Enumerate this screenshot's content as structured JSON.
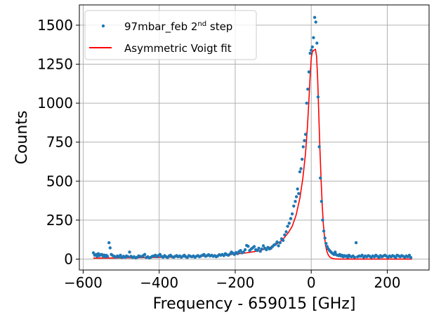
{
  "chart_data": {
    "type": "scatter",
    "title": "",
    "xlabel": "Frequency - 659015 [GHz]",
    "ylabel": "Counts",
    "xlim": [
      -610,
      310
    ],
    "ylim": [
      -70,
      1630
    ],
    "xticks": [
      -600,
      -400,
      -200,
      0,
      200
    ],
    "xtick_labels": [
      "−600",
      "−400",
      "−200",
      "0",
      "200"
    ],
    "yticks": [
      0,
      250,
      500,
      750,
      1000,
      1250,
      1500
    ],
    "ytick_labels": [
      "0",
      "250",
      "500",
      "750",
      "1000",
      "1250",
      "1500"
    ],
    "grid": true,
    "legend_position": "top-left",
    "colors": {
      "data": "#1f77b4",
      "fit": "#ff0000",
      "grid": "#b0b0b0"
    },
    "series": [
      {
        "name": "97mbar_feb 2nd step",
        "legend": {
          "main": "97mbar_feb 2",
          "superscript": "nd",
          "suffix": " step"
        },
        "kind": "scatter",
        "points": [
          [
            -573,
            40
          ],
          [
            -570,
            25
          ],
          [
            -566,
            30
          ],
          [
            -563,
            18
          ],
          [
            -560,
            35
          ],
          [
            -557,
            22
          ],
          [
            -554,
            28
          ],
          [
            -551,
            30
          ],
          [
            -548,
            20
          ],
          [
            -545,
            26
          ],
          [
            -542,
            15
          ],
          [
            -539,
            24
          ],
          [
            -536,
            18
          ],
          [
            -532,
            105
          ],
          [
            -529,
            72
          ],
          [
            -526,
            30
          ],
          [
            -522,
            22
          ],
          [
            -518,
            18
          ],
          [
            -514,
            12
          ],
          [
            -510,
            20
          ],
          [
            -506,
            15
          ],
          [
            -502,
            25
          ],
          [
            -498,
            10
          ],
          [
            -494,
            18
          ],
          [
            -490,
            12
          ],
          [
            -486,
            20
          ],
          [
            -482,
            15
          ],
          [
            -478,
            45
          ],
          [
            -474,
            18
          ],
          [
            -470,
            10
          ],
          [
            -466,
            15
          ],
          [
            -462,
            8
          ],
          [
            -458,
            12
          ],
          [
            -454,
            20
          ],
          [
            -450,
            18
          ],
          [
            -446,
            15
          ],
          [
            -442,
            22
          ],
          [
            -438,
            30
          ],
          [
            -434,
            10
          ],
          [
            -430,
            15
          ],
          [
            -426,
            8
          ],
          [
            -422,
            12
          ],
          [
            -418,
            18
          ],
          [
            -414,
            20
          ],
          [
            -410,
            25
          ],
          [
            -406,
            15
          ],
          [
            -402,
            22
          ],
          [
            -398,
            30
          ],
          [
            -394,
            18
          ],
          [
            -390,
            12
          ],
          [
            -386,
            22
          ],
          [
            -382,
            15
          ],
          [
            -378,
            10
          ],
          [
            -374,
            20
          ],
          [
            -370,
            25
          ],
          [
            -366,
            15
          ],
          [
            -362,
            12
          ],
          [
            -358,
            18
          ],
          [
            -354,
            22
          ],
          [
            -350,
            15
          ],
          [
            -346,
            20
          ],
          [
            -342,
            12
          ],
          [
            -338,
            18
          ],
          [
            -334,
            25
          ],
          [
            -330,
            15
          ],
          [
            -326,
            10
          ],
          [
            -322,
            22
          ],
          [
            -318,
            18
          ],
          [
            -314,
            15
          ],
          [
            -310,
            20
          ],
          [
            -306,
            12
          ],
          [
            -302,
            18
          ],
          [
            -298,
            22
          ],
          [
            -294,
            15
          ],
          [
            -290,
            20
          ],
          [
            -286,
            25
          ],
          [
            -282,
            30
          ],
          [
            -278,
            18
          ],
          [
            -274,
            22
          ],
          [
            -270,
            28
          ],
          [
            -266,
            20
          ],
          [
            -262,
            25
          ],
          [
            -258,
            18
          ],
          [
            -254,
            22
          ],
          [
            -250,
            15
          ],
          [
            -246,
            20
          ],
          [
            -242,
            28
          ],
          [
            -238,
            25
          ],
          [
            -234,
            30
          ],
          [
            -230,
            22
          ],
          [
            -226,
            35
          ],
          [
            -222,
            28
          ],
          [
            -218,
            25
          ],
          [
            -214,
            32
          ],
          [
            -210,
            45
          ],
          [
            -206,
            38
          ],
          [
            -202,
            30
          ],
          [
            -198,
            42
          ],
          [
            -194,
            35
          ],
          [
            -190,
            48
          ],
          [
            -186,
            55
          ],
          [
            -182,
            40
          ],
          [
            -178,
            45
          ],
          [
            -174,
            60
          ],
          [
            -170,
            88
          ],
          [
            -166,
            82
          ],
          [
            -162,
            55
          ],
          [
            -158,
            65
          ],
          [
            -154,
            72
          ],
          [
            -150,
            80
          ],
          [
            -146,
            60
          ],
          [
            -142,
            55
          ],
          [
            -138,
            70
          ],
          [
            -134,
            50
          ],
          [
            -130,
            65
          ],
          [
            -126,
            85
          ],
          [
            -122,
            70
          ],
          [
            -118,
            60
          ],
          [
            -114,
            75
          ],
          [
            -110,
            65
          ],
          [
            -106,
            70
          ],
          [
            -102,
            80
          ],
          [
            -98,
            90
          ],
          [
            -94,
            95
          ],
          [
            -90,
            110
          ],
          [
            -86,
            85
          ],
          [
            -82,
            105
          ],
          [
            -78,
            130
          ],
          [
            -74,
            120
          ],
          [
            -70,
            155
          ],
          [
            -66,
            175
          ],
          [
            -62,
            210
          ],
          [
            -58,
            230
          ],
          [
            -54,
            260
          ],
          [
            -50,
            290
          ],
          [
            -46,
            340
          ],
          [
            -42,
            370
          ],
          [
            -39,
            400
          ],
          [
            -36,
            450
          ],
          [
            -33,
            420
          ],
          [
            -30,
            560
          ],
          [
            -27,
            580
          ],
          [
            -24,
            640
          ],
          [
            -21,
            720
          ],
          [
            -18,
            760
          ],
          [
            -15,
            800
          ],
          [
            -12,
            1000
          ],
          [
            -9,
            1090
          ],
          [
            -6,
            1200
          ],
          [
            -3,
            1320
          ],
          [
            0,
            1340
          ],
          [
            3,
            1360
          ],
          [
            6,
            1420
          ],
          [
            9,
            1550
          ],
          [
            12,
            1520
          ],
          [
            15,
            1385
          ],
          [
            18,
            1040
          ],
          [
            21,
            720
          ],
          [
            24,
            520
          ],
          [
            27,
            370
          ],
          [
            30,
            250
          ],
          [
            33,
            180
          ],
          [
            36,
            135
          ],
          [
            39,
            100
          ],
          [
            42,
            80
          ],
          [
            45,
            65
          ],
          [
            48,
            55
          ],
          [
            51,
            48
          ],
          [
            54,
            40
          ],
          [
            57,
            35
          ],
          [
            60,
            30
          ],
          [
            63,
            45
          ],
          [
            66,
            28
          ],
          [
            69,
            25
          ],
          [
            72,
            22
          ],
          [
            75,
            30
          ],
          [
            78,
            20
          ],
          [
            81,
            25
          ],
          [
            84,
            15
          ],
          [
            87,
            22
          ],
          [
            90,
            18
          ],
          [
            93,
            20
          ],
          [
            96,
            12
          ],
          [
            99,
            25
          ],
          [
            102,
            18
          ],
          [
            106,
            15
          ],
          [
            110,
            20
          ],
          [
            114,
            12
          ],
          [
            118,
            105
          ],
          [
            122,
            15
          ],
          [
            126,
            20
          ],
          [
            130,
            18
          ],
          [
            134,
            25
          ],
          [
            138,
            12
          ],
          [
            142,
            20
          ],
          [
            146,
            15
          ],
          [
            150,
            22
          ],
          [
            154,
            18
          ],
          [
            158,
            12
          ],
          [
            162,
            20
          ],
          [
            166,
            15
          ],
          [
            170,
            25
          ],
          [
            174,
            18
          ],
          [
            178,
            10
          ],
          [
            182,
            22
          ],
          [
            186,
            15
          ],
          [
            190,
            20
          ],
          [
            194,
            25
          ],
          [
            198,
            18
          ],
          [
            202,
            12
          ],
          [
            206,
            20
          ],
          [
            210,
            15
          ],
          [
            214,
            22
          ],
          [
            218,
            18
          ],
          [
            222,
            10
          ],
          [
            226,
            25
          ],
          [
            230,
            20
          ],
          [
            234,
            15
          ],
          [
            238,
            22
          ],
          [
            242,
            18
          ],
          [
            246,
            12
          ],
          [
            250,
            20
          ],
          [
            254,
            15
          ],
          [
            258,
            25
          ],
          [
            262,
            10
          ]
        ]
      },
      {
        "name": "Asymmetric Voigt fit",
        "kind": "line",
        "points": [
          [
            -573,
            6
          ],
          [
            -520,
            7
          ],
          [
            -460,
            9
          ],
          [
            -400,
            11
          ],
          [
            -340,
            14
          ],
          [
            -280,
            19
          ],
          [
            -240,
            24
          ],
          [
            -200,
            32
          ],
          [
            -170,
            40
          ],
          [
            -150,
            48
          ],
          [
            -130,
            58
          ],
          [
            -110,
            74
          ],
          [
            -90,
            98
          ],
          [
            -75,
            125
          ],
          [
            -60,
            170
          ],
          [
            -50,
            210
          ],
          [
            -40,
            280
          ],
          [
            -30,
            390
          ],
          [
            -22,
            520
          ],
          [
            -15,
            680
          ],
          [
            -10,
            850
          ],
          [
            -6,
            1020
          ],
          [
            -3,
            1170
          ],
          [
            0,
            1290
          ],
          [
            3,
            1330
          ],
          [
            7,
            1340
          ],
          [
            11,
            1345
          ],
          [
            14,
            1300
          ],
          [
            17,
            1150
          ],
          [
            20,
            920
          ],
          [
            23,
            700
          ],
          [
            26,
            500
          ],
          [
            29,
            340
          ],
          [
            32,
            220
          ],
          [
            35,
            140
          ],
          [
            38,
            85
          ],
          [
            41,
            50
          ],
          [
            45,
            25
          ],
          [
            50,
            10
          ],
          [
            56,
            4
          ],
          [
            62,
            1
          ],
          [
            70,
            0
          ],
          [
            100,
            0
          ],
          [
            150,
            0
          ],
          [
            200,
            0
          ],
          [
            265,
            0
          ]
        ]
      }
    ]
  }
}
